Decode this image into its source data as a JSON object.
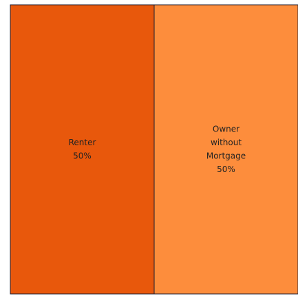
{
  "chart_data": {
    "type": "treemap",
    "title": "",
    "categories": [
      "Renter",
      "Owner without Mortgage"
    ],
    "values": [
      50,
      50
    ],
    "value_labels": [
      "50%",
      "50%"
    ],
    "colors": [
      "#e8580c",
      "#fd8d3c"
    ],
    "border_color": "#1a1a2e"
  },
  "tiles": [
    {
      "label_lines": [
        "Renter"
      ],
      "value_label": "50%"
    },
    {
      "label_lines": [
        "Owner",
        "without",
        "Mortgage"
      ],
      "value_label": "50%"
    }
  ]
}
